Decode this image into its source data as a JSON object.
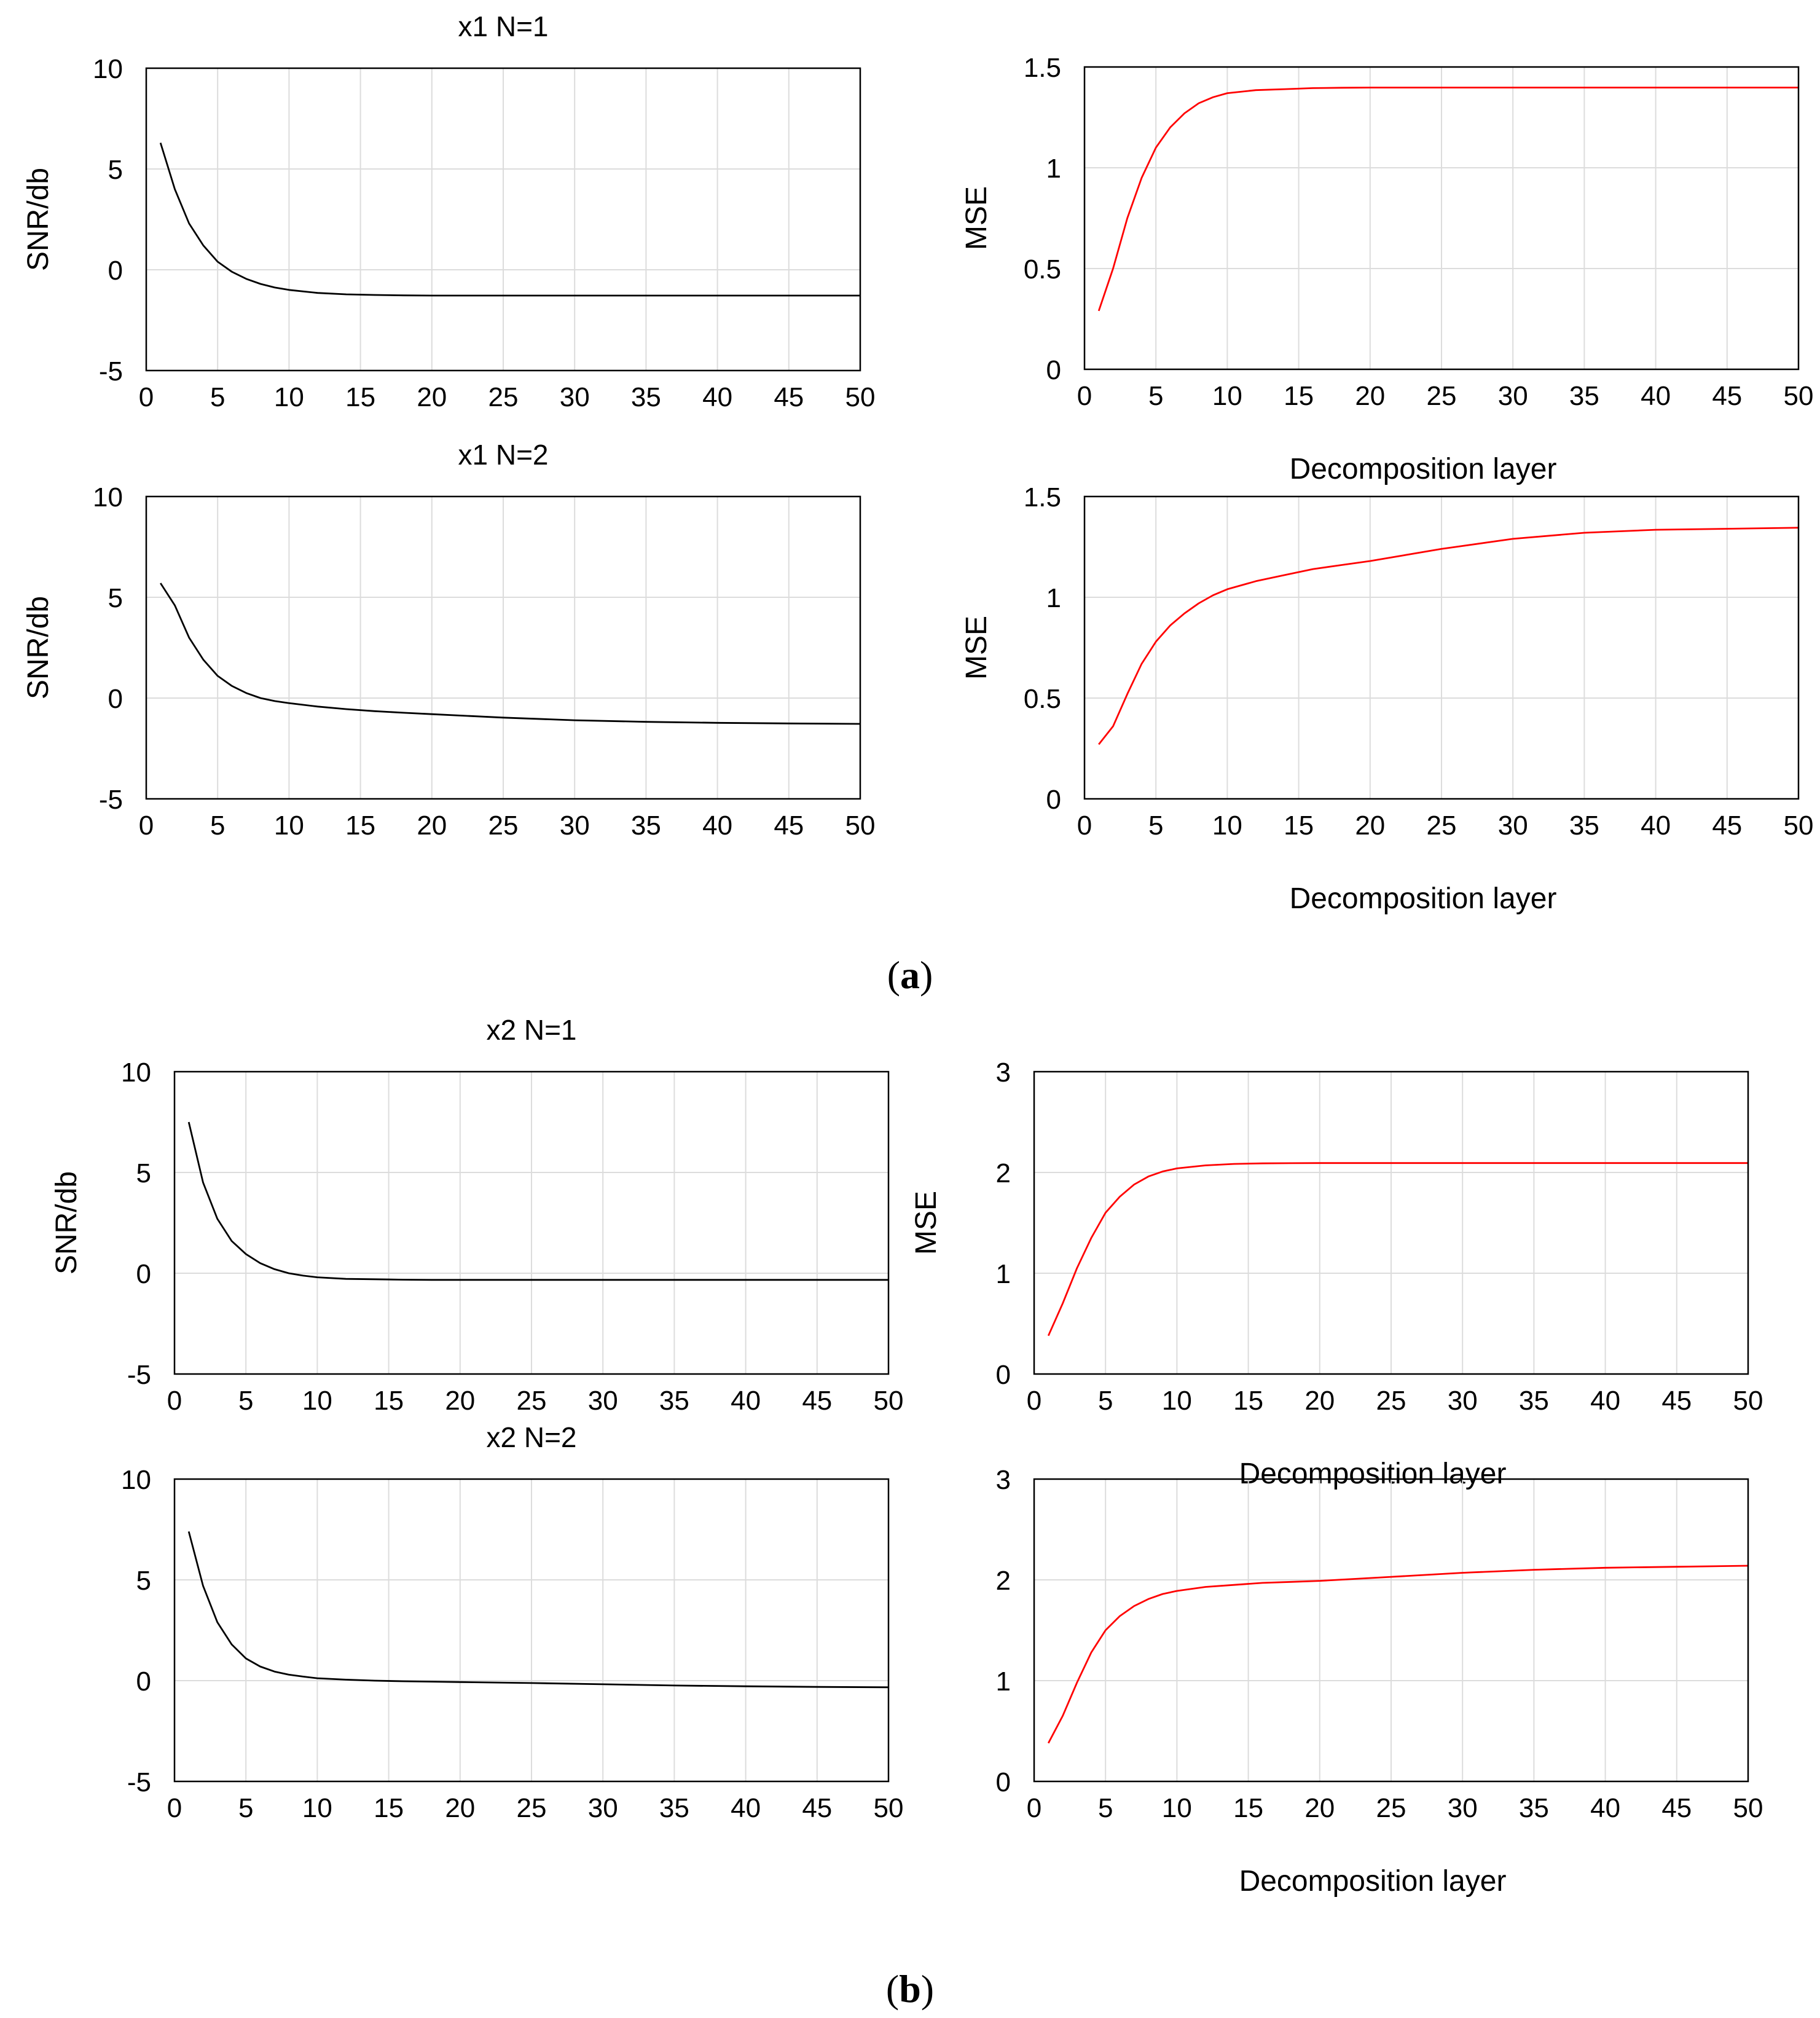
{
  "figure_label_a": "a",
  "figure_label_b": "b",
  "colors": {
    "snr_line": "#000000",
    "mse_line": "#ff0000",
    "grid": "#dcdcdc"
  },
  "chart_data": [
    {
      "id": "x1-n1-snr",
      "type": "line",
      "title": "x1 N=1",
      "xlabel": "",
      "ylabel": "SNR/db",
      "xlim": [
        0,
        50
      ],
      "ylim": [
        -5,
        10
      ],
      "xticks": [
        0,
        5,
        10,
        15,
        20,
        25,
        30,
        35,
        40,
        45,
        50
      ],
      "yticks": [
        -5,
        0,
        5,
        10
      ],
      "series": [
        {
          "name": "SNR",
          "color": "#000000",
          "x": [
            1,
            2,
            3,
            4,
            5,
            6,
            7,
            8,
            9,
            10,
            12,
            14,
            16,
            18,
            20,
            25,
            30,
            35,
            40,
            45,
            50
          ],
          "y": [
            6.3,
            4.0,
            2.3,
            1.2,
            0.4,
            -0.1,
            -0.45,
            -0.7,
            -0.88,
            -1.0,
            -1.15,
            -1.22,
            -1.25,
            -1.27,
            -1.28,
            -1.28,
            -1.28,
            -1.28,
            -1.28,
            -1.28,
            -1.28
          ]
        }
      ]
    },
    {
      "id": "x1-n1-mse",
      "type": "line",
      "title": "",
      "xlabel": "Decomposition layer",
      "ylabel": "MSE",
      "xlim": [
        0,
        50
      ],
      "ylim": [
        0,
        1.5
      ],
      "xticks": [
        0,
        5,
        10,
        15,
        20,
        25,
        30,
        35,
        40,
        45,
        50
      ],
      "yticks": [
        0,
        0.5,
        1,
        1.5
      ],
      "series": [
        {
          "name": "MSE",
          "color": "#ff0000",
          "x": [
            1,
            2,
            3,
            4,
            5,
            6,
            7,
            8,
            9,
            10,
            12,
            14,
            16,
            18,
            20,
            25,
            30,
            35,
            40,
            45,
            50
          ],
          "y": [
            0.29,
            0.5,
            0.75,
            0.95,
            1.1,
            1.2,
            1.27,
            1.32,
            1.35,
            1.37,
            1.385,
            1.39,
            1.395,
            1.397,
            1.398,
            1.398,
            1.398,
            1.398,
            1.398,
            1.398,
            1.398
          ]
        }
      ]
    },
    {
      "id": "x1-n2-snr",
      "type": "line",
      "title": "x1 N=2",
      "xlabel": "",
      "ylabel": "SNR/db",
      "xlim": [
        0,
        50
      ],
      "ylim": [
        -5,
        10
      ],
      "xticks": [
        0,
        5,
        10,
        15,
        20,
        25,
        30,
        35,
        40,
        45,
        50
      ],
      "yticks": [
        -5,
        0,
        5,
        10
      ],
      "series": [
        {
          "name": "SNR",
          "color": "#000000",
          "x": [
            1,
            2,
            3,
            4,
            5,
            6,
            7,
            8,
            9,
            10,
            12,
            14,
            16,
            18,
            20,
            25,
            30,
            35,
            40,
            45,
            50
          ],
          "y": [
            5.7,
            4.6,
            3.0,
            1.9,
            1.1,
            0.6,
            0.25,
            0.0,
            -0.15,
            -0.25,
            -0.42,
            -0.55,
            -0.65,
            -0.73,
            -0.8,
            -0.97,
            -1.1,
            -1.18,
            -1.23,
            -1.26,
            -1.28
          ]
        }
      ]
    },
    {
      "id": "x1-n2-mse",
      "type": "line",
      "title": "",
      "xlabel": "Decomposition layer",
      "ylabel": "MSE",
      "xlim": [
        0,
        50
      ],
      "ylim": [
        0,
        1.5
      ],
      "xticks": [
        0,
        5,
        10,
        15,
        20,
        25,
        30,
        35,
        40,
        45,
        50
      ],
      "yticks": [
        0,
        0.5,
        1,
        1.5
      ],
      "series": [
        {
          "name": "MSE",
          "color": "#ff0000",
          "x": [
            1,
            2,
            3,
            4,
            5,
            6,
            7,
            8,
            9,
            10,
            12,
            14,
            16,
            18,
            20,
            25,
            30,
            35,
            40,
            45,
            50
          ],
          "y": [
            0.27,
            0.36,
            0.52,
            0.67,
            0.78,
            0.86,
            0.92,
            0.97,
            1.01,
            1.04,
            1.08,
            1.11,
            1.14,
            1.16,
            1.18,
            1.24,
            1.29,
            1.32,
            1.335,
            1.34,
            1.345
          ]
        }
      ]
    },
    {
      "id": "x2-n1-snr",
      "type": "line",
      "title": "x2 N=1",
      "xlabel": "",
      "ylabel": "SNR/db",
      "xlim": [
        0,
        50
      ],
      "ylim": [
        -5,
        10
      ],
      "xticks": [
        0,
        5,
        10,
        15,
        20,
        25,
        30,
        35,
        40,
        45,
        50
      ],
      "yticks": [
        -5,
        0,
        5,
        10
      ],
      "series": [
        {
          "name": "SNR",
          "color": "#000000",
          "x": [
            1,
            2,
            3,
            4,
            5,
            6,
            7,
            8,
            9,
            10,
            12,
            14,
            16,
            18,
            20,
            25,
            30,
            35,
            40,
            45,
            50
          ],
          "y": [
            7.5,
            4.5,
            2.7,
            1.6,
            0.95,
            0.5,
            0.2,
            0.0,
            -0.12,
            -0.2,
            -0.28,
            -0.3,
            -0.32,
            -0.33,
            -0.33,
            -0.33,
            -0.33,
            -0.33,
            -0.33,
            -0.33,
            -0.33
          ]
        }
      ]
    },
    {
      "id": "x2-n1-mse",
      "type": "line",
      "title": "",
      "xlabel": "Decomposition layer",
      "ylabel": "MSE",
      "xlim": [
        0,
        50
      ],
      "ylim": [
        0,
        3
      ],
      "xticks": [
        0,
        5,
        10,
        15,
        20,
        25,
        30,
        35,
        40,
        45,
        50
      ],
      "yticks": [
        0,
        1,
        2,
        3
      ],
      "series": [
        {
          "name": "MSE",
          "color": "#ff0000",
          "x": [
            1,
            2,
            3,
            4,
            5,
            6,
            7,
            8,
            9,
            10,
            12,
            14,
            16,
            18,
            20,
            25,
            30,
            35,
            40,
            45,
            50
          ],
          "y": [
            0.38,
            0.7,
            1.05,
            1.35,
            1.6,
            1.76,
            1.88,
            1.96,
            2.01,
            2.04,
            2.07,
            2.085,
            2.09,
            2.092,
            2.093,
            2.093,
            2.093,
            2.093,
            2.093,
            2.093,
            2.093
          ]
        }
      ]
    },
    {
      "id": "x2-n2-snr",
      "type": "line",
      "title": "x2 N=2",
      "xlabel": "",
      "ylabel": "",
      "xlim": [
        0,
        50
      ],
      "ylim": [
        -5,
        10
      ],
      "xticks": [
        0,
        5,
        10,
        15,
        20,
        25,
        30,
        35,
        40,
        45,
        50
      ],
      "yticks": [
        -5,
        0,
        5,
        10
      ],
      "series": [
        {
          "name": "SNR",
          "color": "#000000",
          "x": [
            1,
            2,
            3,
            4,
            5,
            6,
            7,
            8,
            9,
            10,
            12,
            14,
            16,
            18,
            20,
            25,
            30,
            35,
            40,
            45,
            50
          ],
          "y": [
            7.4,
            4.7,
            2.9,
            1.8,
            1.1,
            0.7,
            0.45,
            0.3,
            0.2,
            0.12,
            0.05,
            0.0,
            -0.03,
            -0.05,
            -0.07,
            -0.12,
            -0.18,
            -0.24,
            -0.28,
            -0.31,
            -0.33
          ]
        }
      ]
    },
    {
      "id": "x2-n2-mse",
      "type": "line",
      "title": "",
      "xlabel": "Decomposition layer",
      "ylabel": "",
      "xlim": [
        0,
        50
      ],
      "ylim": [
        0,
        3
      ],
      "xticks": [
        0,
        5,
        10,
        15,
        20,
        25,
        30,
        35,
        40,
        45,
        50
      ],
      "yticks": [
        0,
        1,
        2,
        3
      ],
      "series": [
        {
          "name": "MSE",
          "color": "#ff0000",
          "x": [
            1,
            2,
            3,
            4,
            5,
            6,
            7,
            8,
            9,
            10,
            12,
            14,
            16,
            18,
            20,
            25,
            30,
            35,
            40,
            45,
            50
          ],
          "y": [
            0.38,
            0.65,
            0.98,
            1.28,
            1.5,
            1.64,
            1.74,
            1.81,
            1.86,
            1.89,
            1.93,
            1.95,
            1.97,
            1.98,
            1.99,
            2.03,
            2.07,
            2.1,
            2.12,
            2.13,
            2.14
          ]
        }
      ]
    }
  ]
}
